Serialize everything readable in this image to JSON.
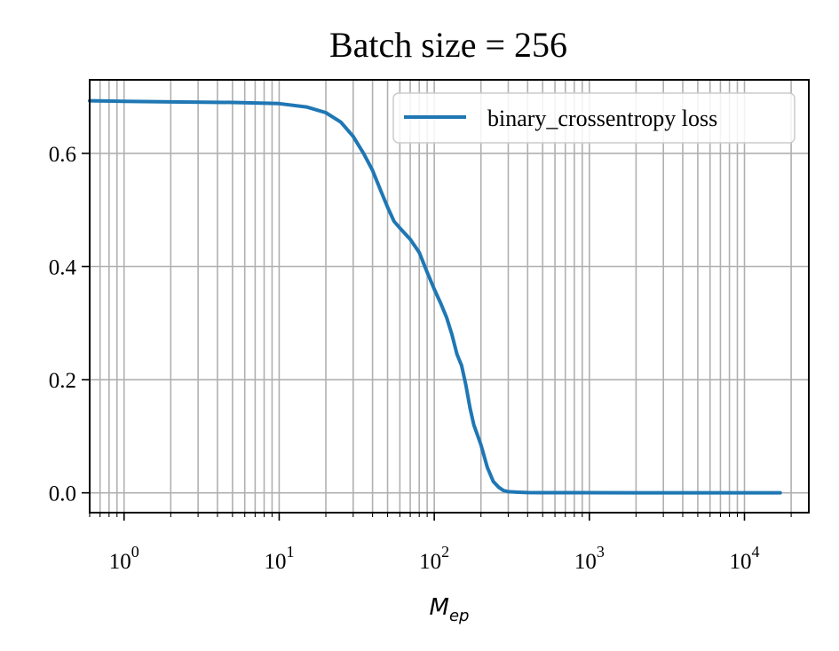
{
  "chart_data": {
    "type": "line",
    "title": "Batch size = 256",
    "xlabel": {
      "base": "M",
      "sub": "ep"
    },
    "ylabel": "",
    "xscale": "log",
    "xlim": [
      0.6,
      26000
    ],
    "ylim": [
      -0.035,
      0.73
    ],
    "grid": true,
    "legend": {
      "placement": "top-right",
      "entries": [
        "binary_crossentropy loss"
      ]
    },
    "x_major_ticks": [
      {
        "value": 1,
        "base": "10",
        "exp": "0"
      },
      {
        "value": 10,
        "base": "10",
        "exp": "1"
      },
      {
        "value": 100,
        "base": "10",
        "exp": "2"
      },
      {
        "value": 1000,
        "base": "10",
        "exp": "3"
      },
      {
        "value": 10000,
        "base": "10",
        "exp": "4"
      }
    ],
    "y_ticks": [
      {
        "value": 0.0,
        "label": "0.0"
      },
      {
        "value": 0.2,
        "label": "0.2"
      },
      {
        "value": 0.4,
        "label": "0.4"
      },
      {
        "value": 0.6,
        "label": "0.6"
      }
    ],
    "series": [
      {
        "name": "binary_crossentropy loss",
        "color": "#1f77b4",
        "x": [
          0.6,
          1,
          2,
          5,
          10,
          15,
          20,
          25,
          30,
          35,
          40,
          45,
          50,
          55,
          60,
          70,
          80,
          90,
          100,
          110,
          120,
          130,
          140,
          150,
          160,
          170,
          180,
          200,
          220,
          240,
          260,
          280,
          300,
          350,
          400,
          500,
          1000,
          2000,
          5000,
          10000,
          17000
        ],
        "y": [
          0.693,
          0.692,
          0.691,
          0.69,
          0.688,
          0.682,
          0.672,
          0.655,
          0.63,
          0.6,
          0.57,
          0.535,
          0.505,
          0.48,
          0.468,
          0.448,
          0.425,
          0.39,
          0.36,
          0.335,
          0.31,
          0.28,
          0.245,
          0.225,
          0.19,
          0.15,
          0.12,
          0.085,
          0.045,
          0.02,
          0.01,
          0.004,
          0.002,
          0.001,
          0.0005,
          0.0003,
          0.0002,
          0.0001,
          0.0001,
          0.0001,
          0.0001
        ]
      }
    ]
  }
}
